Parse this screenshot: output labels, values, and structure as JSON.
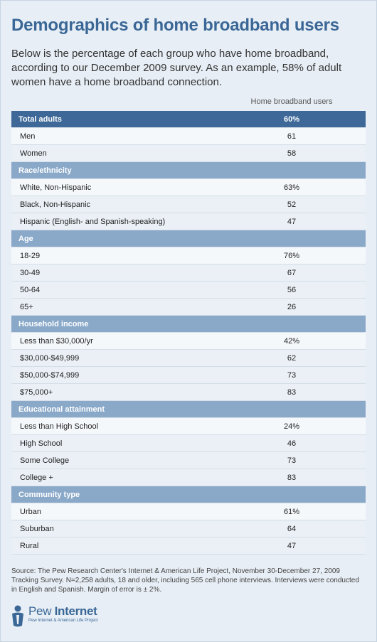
{
  "title": "Demographics of home broadband users",
  "intro": "Below is the percentage of each group who have home broadband, according to our December 2009 survey. As an example, 58% of adult women have a home broadband connection.",
  "column_header": "Home broadband users",
  "total": {
    "label": "Total adults",
    "value": "60%"
  },
  "groups": [
    {
      "label": "",
      "rows": [
        {
          "label": "Men",
          "value": "61"
        },
        {
          "label": "Women",
          "value": "58"
        }
      ]
    },
    {
      "label": "Race/ethnicity",
      "rows": [
        {
          "label": "White, Non-Hispanic",
          "value": "63%"
        },
        {
          "label": "Black, Non-Hispanic",
          "value": "52"
        },
        {
          "label": "Hispanic (English- and Spanish-speaking)",
          "value": "47"
        }
      ]
    },
    {
      "label": "Age",
      "rows": [
        {
          "label": "18-29",
          "value": "76%"
        },
        {
          "label": "30-49",
          "value": "67"
        },
        {
          "label": "50-64",
          "value": "56"
        },
        {
          "label": "65+",
          "value": "26"
        }
      ]
    },
    {
      "label": "Household income",
      "rows": [
        {
          "label": "Less than $30,000/yr",
          "value": "42%"
        },
        {
          "label": "$30,000-$49,999",
          "value": "62"
        },
        {
          "label": "$50,000-$74,999",
          "value": "73"
        },
        {
          "label": "$75,000+",
          "value": "83"
        }
      ]
    },
    {
      "label": "Educational attainment",
      "rows": [
        {
          "label": "Less than High School",
          "value": "24%"
        },
        {
          "label": "High School",
          "value": "46"
        },
        {
          "label": "Some College",
          "value": "73"
        },
        {
          "label": "College +",
          "value": "83"
        }
      ]
    },
    {
      "label": "Community type",
      "rows": [
        {
          "label": "Urban",
          "value": "61%"
        },
        {
          "label": "Suburban",
          "value": "64"
        },
        {
          "label": "Rural",
          "value": "47"
        }
      ]
    }
  ],
  "source": "Source: The Pew Research Center's Internet & American Life Project, November 30-December 27, 2009 Tracking Survey. N=2,258 adults, 18 and older, including 565 cell phone interviews. Interviews were conducted in English and Spanish. Margin of error is ± 2%.",
  "logo": {
    "name_light": "Pew ",
    "name_bold": "Internet",
    "tagline": "Pew Internet & American Life Project"
  },
  "colors": {
    "title": "#3a6796",
    "total_header": "#3d6897",
    "group_header": "#8aa9c9",
    "row_bg": "#eaf0f6",
    "page_bg": "#e7eef5"
  },
  "chart_data": {
    "type": "table",
    "title": "Demographics of home broadband users",
    "columns": [
      "Home broadband users"
    ],
    "rows": [
      {
        "group": "Total adults",
        "label": "Total adults",
        "value": 60
      },
      {
        "group": "",
        "label": "Men",
        "value": 61
      },
      {
        "group": "",
        "label": "Women",
        "value": 58
      },
      {
        "group": "Race/ethnicity",
        "label": "White, Non-Hispanic",
        "value": 63
      },
      {
        "group": "Race/ethnicity",
        "label": "Black, Non-Hispanic",
        "value": 52
      },
      {
        "group": "Race/ethnicity",
        "label": "Hispanic (English- and Spanish-speaking)",
        "value": 47
      },
      {
        "group": "Age",
        "label": "18-29",
        "value": 76
      },
      {
        "group": "Age",
        "label": "30-49",
        "value": 67
      },
      {
        "group": "Age",
        "label": "50-64",
        "value": 56
      },
      {
        "group": "Age",
        "label": "65+",
        "value": 26
      },
      {
        "group": "Household income",
        "label": "Less than $30,000/yr",
        "value": 42
      },
      {
        "group": "Household income",
        "label": "$30,000-$49,999",
        "value": 62
      },
      {
        "group": "Household income",
        "label": "$50,000-$74,999",
        "value": 73
      },
      {
        "group": "Household income",
        "label": "$75,000+",
        "value": 83
      },
      {
        "group": "Educational attainment",
        "label": "Less than High School",
        "value": 24
      },
      {
        "group": "Educational attainment",
        "label": "High School",
        "value": 46
      },
      {
        "group": "Educational attainment",
        "label": "Some College",
        "value": 73
      },
      {
        "group": "Educational attainment",
        "label": "College +",
        "value": 83
      },
      {
        "group": "Community type",
        "label": "Urban",
        "value": 61
      },
      {
        "group": "Community type",
        "label": "Suburban",
        "value": 64
      },
      {
        "group": "Community type",
        "label": "Rural",
        "value": 47
      }
    ]
  }
}
